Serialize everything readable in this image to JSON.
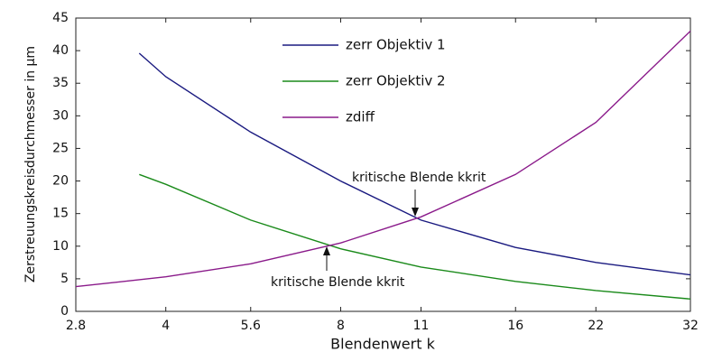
{
  "chart_data": {
    "type": "line",
    "x_label": "Blendenwert k",
    "y_label": "Zerstreuungskreisdurchmesser in µm",
    "x_scale": "log",
    "xlim": [
      2.8,
      32
    ],
    "xticks": [
      2.8,
      4,
      5.6,
      8,
      11,
      16,
      22,
      32
    ],
    "ylim": [
      0,
      45
    ],
    "yticks": [
      0,
      5,
      10,
      15,
      20,
      25,
      30,
      35,
      40,
      45
    ],
    "series": [
      {
        "name": "zerr Objektiv 1",
        "color": "#1a1a80",
        "x": [
          3.6,
          4,
          5.6,
          8,
          11,
          16,
          22,
          32
        ],
        "values": [
          39.6,
          36,
          27.5,
          20,
          14,
          9.8,
          7.5,
          5.6
        ]
      },
      {
        "name": "zerr Objektiv 2",
        "color": "#1a8a1a",
        "x": [
          3.6,
          4,
          5.6,
          8,
          11,
          16,
          22,
          32
        ],
        "values": [
          21,
          19.5,
          14,
          9.6,
          6.8,
          4.6,
          3.2,
          1.9
        ]
      },
      {
        "name": "zdiff",
        "color": "#8a1a8a",
        "x": [
          2.8,
          4,
          5.6,
          8,
          11,
          16,
          22,
          32
        ],
        "values": [
          3.8,
          5.3,
          7.3,
          10.5,
          14.5,
          21,
          29,
          43
        ]
      }
    ],
    "annotations": [
      "kritische Blende kkrit",
      "kritische Blende kkrit"
    ]
  }
}
